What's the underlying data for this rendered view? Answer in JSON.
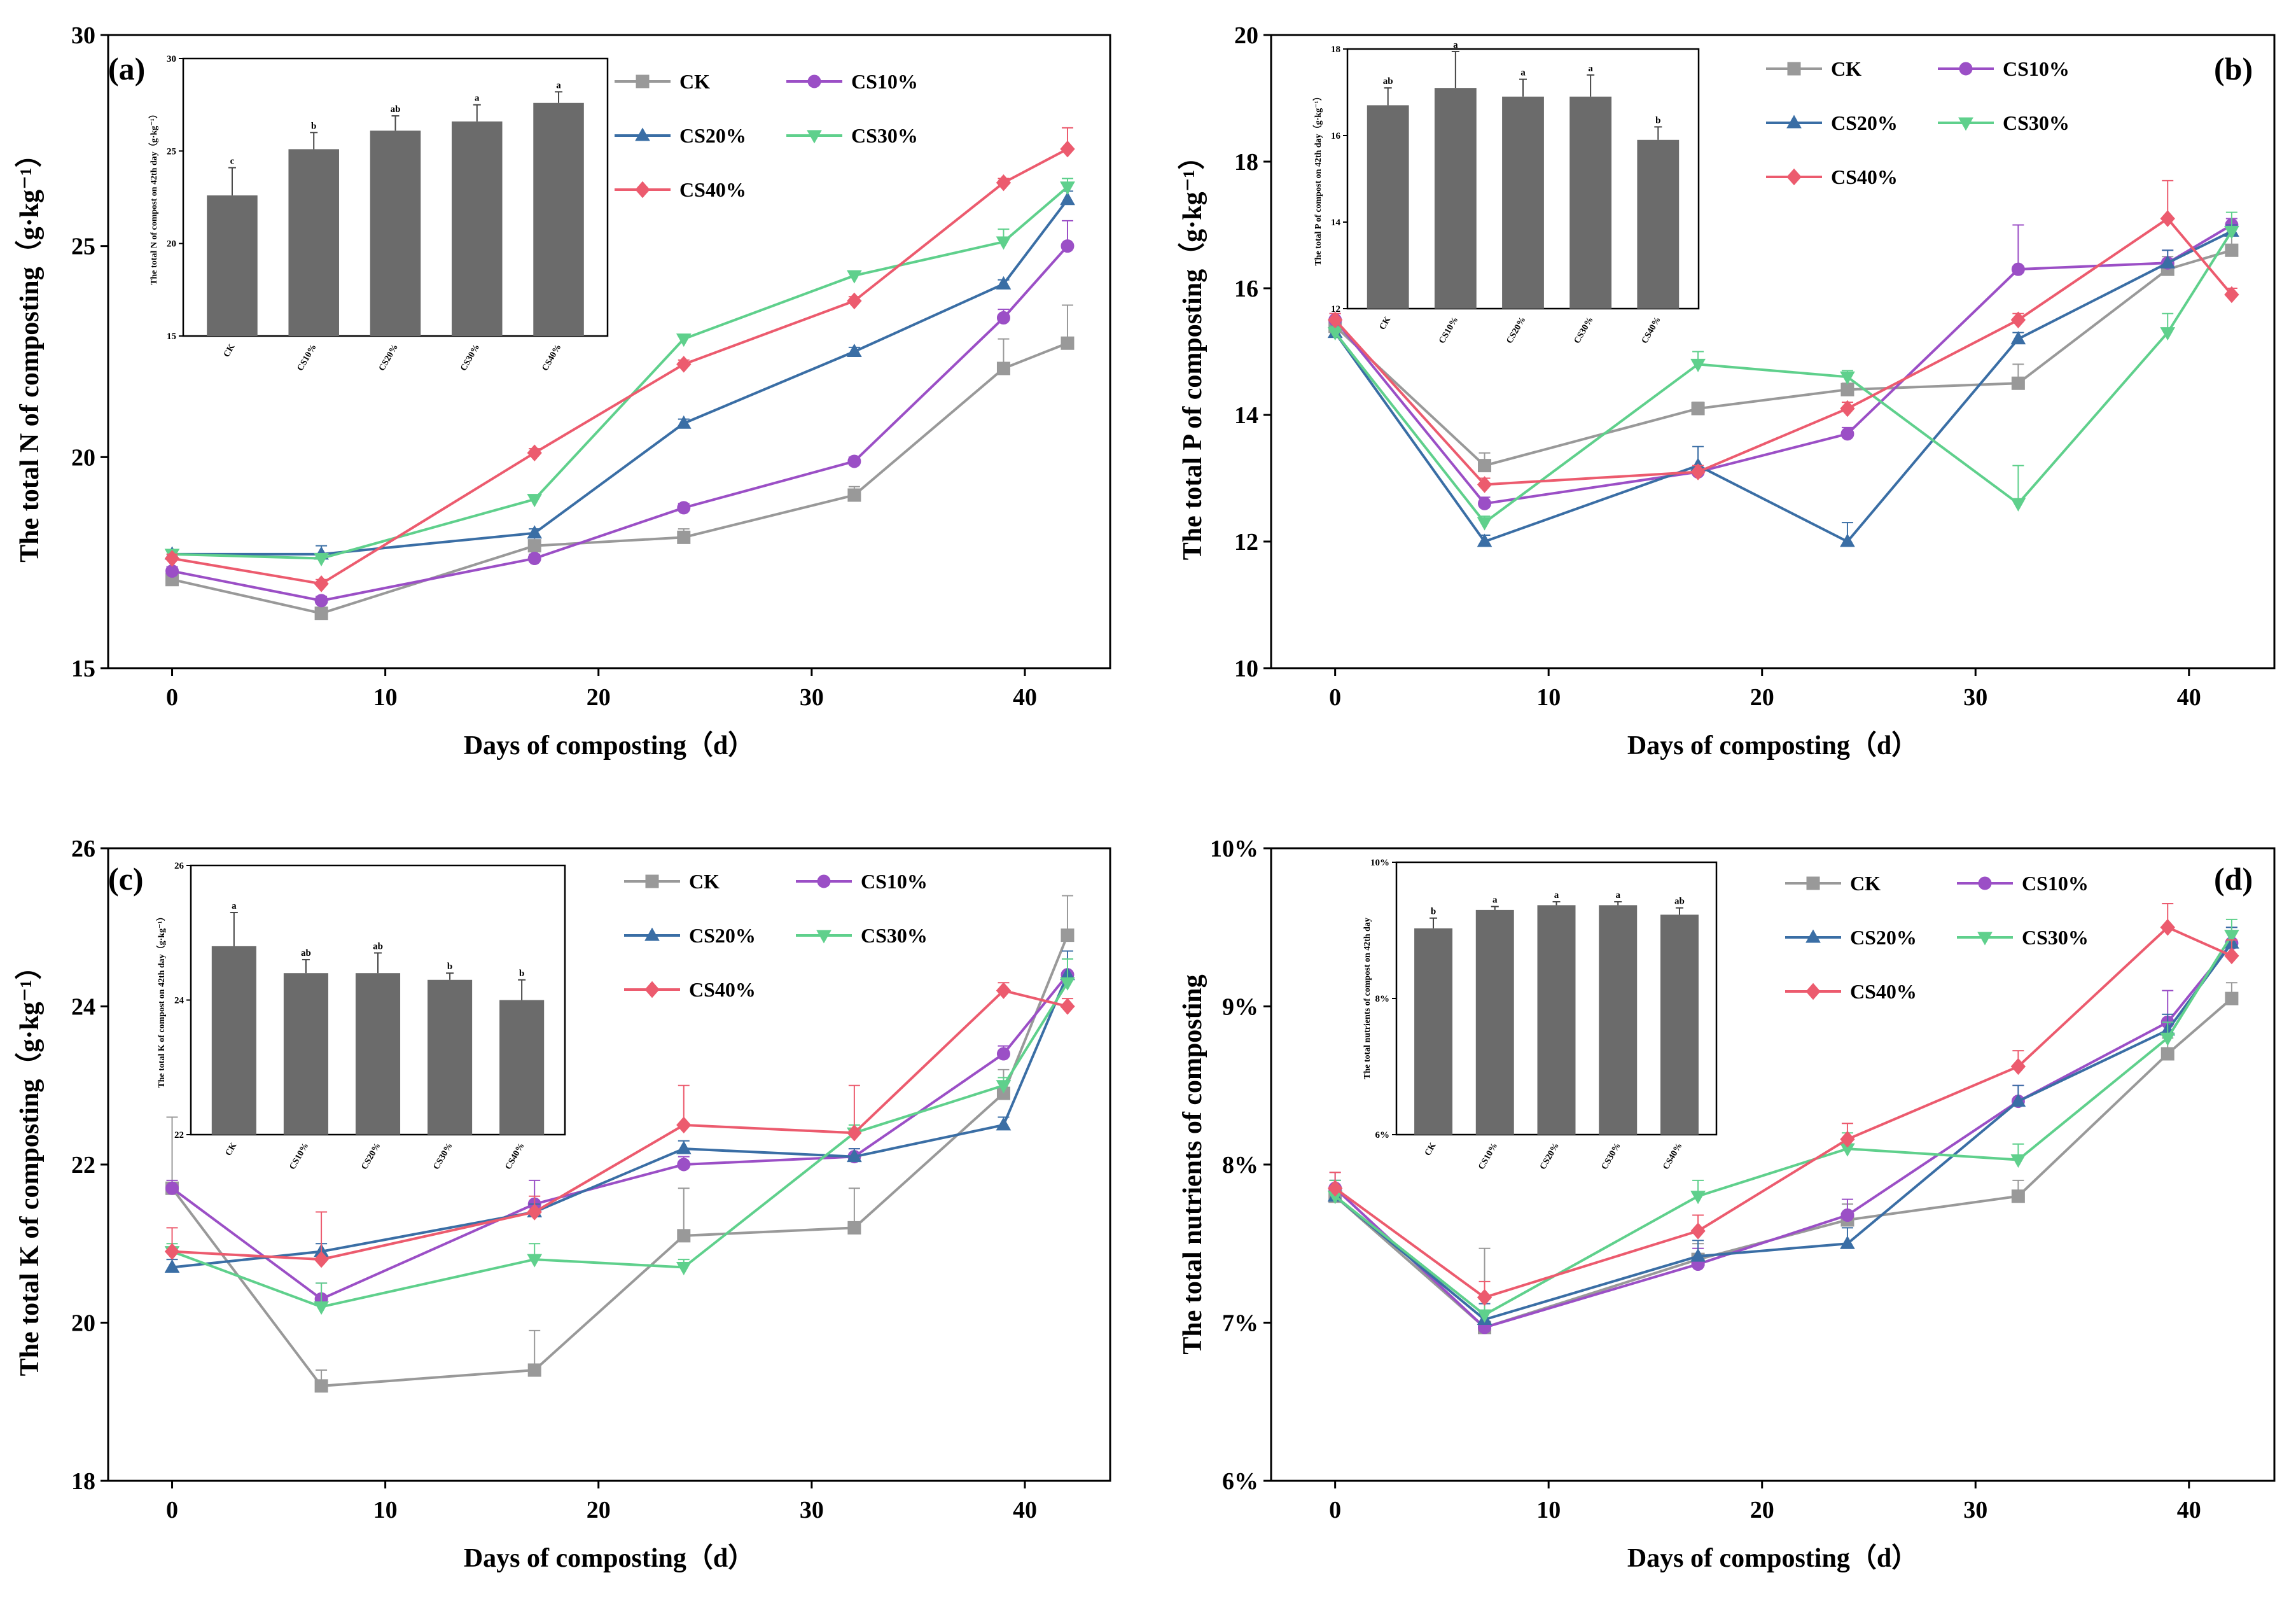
{
  "colors": {
    "CK": "#999999",
    "CS10%": "#9b4fc6",
    "CS20%": "#3a6ea5",
    "CS30%": "#5fd08c",
    "CS40%": "#ec5b6e",
    "inset_bar": "#6b6b6b"
  },
  "markers": {
    "CK": "square",
    "CS10%": "circle",
    "CS20%": "triangle-up",
    "CS30%": "triangle-down",
    "CS40%": "diamond"
  },
  "chart_data": [
    {
      "type": "line",
      "panel_label": "(a)",
      "xlabel": "Days of composting（d）",
      "ylabel": "The total N of composting（g·kg⁻¹）",
      "x": [
        0,
        7,
        17,
        24,
        32,
        39,
        42
      ],
      "xlim": [
        -3,
        44
      ],
      "xticks": [
        0,
        10,
        20,
        30,
        40
      ],
      "ylim": [
        15,
        30
      ],
      "yticks": [
        15,
        20,
        25,
        30
      ],
      "ytick_labels": [
        "15",
        "20",
        "25",
        "30"
      ],
      "legend_position": "top-right",
      "series": [
        {
          "name": "CK",
          "values": [
            17.1,
            16.3,
            17.9,
            18.1,
            19.1,
            22.1,
            22.7
          ],
          "errors": [
            0.2,
            0.1,
            0.2,
            0.2,
            0.2,
            0.7,
            0.9
          ]
        },
        {
          "name": "CS10%",
          "values": [
            17.3,
            16.6,
            17.6,
            18.8,
            19.9,
            23.3,
            25.0
          ],
          "errors": [
            0.1,
            0.1,
            0.1,
            0.1,
            0.1,
            0.2,
            0.6
          ]
        },
        {
          "name": "CS20%",
          "values": [
            17.7,
            17.7,
            18.2,
            20.8,
            22.5,
            24.1,
            26.1
          ],
          "errors": [
            0.1,
            0.2,
            0.1,
            0.1,
            0.1,
            0.1,
            0.2
          ]
        },
        {
          "name": "CS30%",
          "values": [
            17.7,
            17.6,
            19.0,
            22.8,
            24.3,
            25.1,
            26.4
          ],
          "errors": [
            0.1,
            0.1,
            0.1,
            0.1,
            0.1,
            0.3,
            0.2
          ]
        },
        {
          "name": "CS40%",
          "values": [
            17.6,
            17.0,
            20.1,
            22.2,
            23.7,
            26.5,
            27.3
          ],
          "errors": [
            0.1,
            0.1,
            0.1,
            0.1,
            0.1,
            0.1,
            0.5
          ]
        }
      ],
      "inset": {
        "type": "bar",
        "ylabel": "The total N of compost on 42th day（g·kg⁻¹）",
        "categories": [
          "CK",
          "CS10%",
          "CS20%",
          "CS30%",
          "CS40%"
        ],
        "values": [
          22.6,
          25.1,
          26.1,
          26.6,
          27.6
        ],
        "errors": [
          1.5,
          0.9,
          0.8,
          0.9,
          0.6
        ],
        "letters": [
          "c",
          "b",
          "ab",
          "a",
          "a"
        ],
        "ylim": [
          15,
          30
        ],
        "yticks": [
          15,
          20,
          25,
          30
        ],
        "ytick_labels": [
          "15",
          "20",
          "25",
          "30"
        ]
      }
    },
    {
      "type": "line",
      "panel_label": "(b)",
      "xlabel": "Days of composting（d）",
      "ylabel": "The total P of composting（g·kg⁻¹）",
      "x": [
        0,
        7,
        17,
        24,
        32,
        39,
        42
      ],
      "xlim": [
        -3,
        44
      ],
      "xticks": [
        0,
        10,
        20,
        30,
        40
      ],
      "ylim": [
        10,
        20
      ],
      "yticks": [
        10,
        12,
        14,
        16,
        18,
        20
      ],
      "ytick_labels": [
        "10",
        "12",
        "14",
        "16",
        "18",
        "20"
      ],
      "legend_position": "top-right",
      "series": [
        {
          "name": "CK",
          "values": [
            15.4,
            13.2,
            14.1,
            14.4,
            14.5,
            16.3,
            16.6
          ],
          "errors": [
            0.1,
            0.2,
            0.1,
            0.1,
            0.3,
            0.2,
            0.5
          ]
        },
        {
          "name": "CS10%",
          "values": [
            15.5,
            12.6,
            13.1,
            13.7,
            16.3,
            16.4,
            17.0
          ],
          "errors": [
            0.1,
            0.1,
            0.1,
            0.1,
            0.7,
            0.2,
            0.1
          ]
        },
        {
          "name": "CS20%",
          "values": [
            15.3,
            12.0,
            13.2,
            12.0,
            15.2,
            16.4,
            16.9
          ],
          "errors": [
            0.1,
            0.1,
            0.3,
            0.3,
            0.1,
            0.2,
            0.1
          ]
        },
        {
          "name": "CS30%",
          "values": [
            15.3,
            12.3,
            14.8,
            14.6,
            12.6,
            15.3,
            16.9
          ],
          "errors": [
            0.1,
            0.1,
            0.2,
            0.1,
            0.6,
            0.3,
            0.3
          ]
        },
        {
          "name": "CS40%",
          "values": [
            15.5,
            12.9,
            13.1,
            14.1,
            15.5,
            17.1,
            15.9
          ],
          "errors": [
            0.1,
            0.1,
            0.1,
            0.1,
            0.1,
            0.6,
            0.1
          ]
        }
      ],
      "inset": {
        "type": "bar",
        "ylabel": "The total P of compost on 42th day（g·kg⁻¹）",
        "categories": [
          "CK",
          "CS10%",
          "CS20%",
          "CS30%",
          "CS40%"
        ],
        "values": [
          16.7,
          17.1,
          16.9,
          16.9,
          15.9
        ],
        "errors": [
          0.4,
          4.9,
          0.4,
          0.5,
          0.3
        ],
        "letters": [
          "ab",
          "a",
          "a",
          "a",
          "b"
        ],
        "ylim": [
          12,
          18
        ],
        "yticks": [
          12,
          14,
          16,
          18
        ],
        "ytick_labels": [
          "12",
          "14",
          "16",
          "18"
        ]
      }
    },
    {
      "type": "line",
      "panel_label": "(c)",
      "xlabel": "Days of composting（d）",
      "ylabel": "The total K of composting（g·kg⁻¹）",
      "x": [
        0,
        7,
        17,
        24,
        32,
        39,
        42
      ],
      "xlim": [
        -3,
        44
      ],
      "xticks": [
        0,
        10,
        20,
        30,
        40
      ],
      "ylim": [
        18,
        26
      ],
      "yticks": [
        18,
        20,
        22,
        24,
        26
      ],
      "ytick_labels": [
        "18",
        "20",
        "22",
        "24",
        "26"
      ],
      "legend_position": "top-right",
      "series": [
        {
          "name": "CK",
          "values": [
            21.7,
            19.2,
            19.4,
            21.1,
            21.2,
            22.9,
            24.9
          ],
          "errors": [
            0.9,
            0.2,
            0.5,
            0.6,
            0.5,
            0.3,
            0.5
          ]
        },
        {
          "name": "CS10%",
          "values": [
            21.7,
            20.3,
            21.5,
            22.0,
            22.1,
            23.4,
            24.4
          ],
          "errors": [
            0.1,
            0.2,
            0.3,
            0.1,
            0.1,
            0.1,
            0.2
          ]
        },
        {
          "name": "CS20%",
          "values": [
            20.7,
            20.9,
            21.4,
            22.2,
            22.1,
            22.5,
            24.4
          ],
          "errors": [
            0.1,
            0.1,
            0.1,
            0.1,
            0.1,
            0.1,
            0.3
          ]
        },
        {
          "name": "CS30%",
          "values": [
            20.9,
            20.2,
            20.8,
            20.7,
            22.4,
            23.0,
            24.3
          ],
          "errors": [
            0.1,
            0.3,
            0.2,
            0.1,
            0.1,
            0.1,
            0.3
          ]
        },
        {
          "name": "CS40%",
          "values": [
            20.9,
            20.8,
            21.4,
            22.5,
            22.4,
            24.2,
            24.0
          ],
          "errors": [
            0.3,
            0.6,
            0.2,
            0.5,
            0.6,
            0.1,
            0.1
          ]
        }
      ],
      "inset": {
        "type": "bar",
        "ylabel": "The total K of compost on 42th day（g·kg⁻¹）",
        "categories": [
          "CK",
          "CS10%",
          "CS20%",
          "CS30%",
          "CS40%"
        ],
        "values": [
          24.8,
          24.4,
          24.4,
          24.3,
          24.0
        ],
        "errors": [
          0.5,
          0.2,
          0.3,
          0.1,
          0.3
        ],
        "letters": [
          "a",
          "ab",
          "ab",
          "b",
          "b"
        ],
        "ylim": [
          22,
          26
        ],
        "yticks": [
          22,
          24,
          26
        ],
        "ytick_labels": [
          "22",
          "24",
          "26"
        ]
      }
    },
    {
      "type": "line",
      "panel_label": "(d)",
      "xlabel": "Days of composting（d）",
      "ylabel": "The total nutrients of composting",
      "x": [
        0,
        7,
        17,
        24,
        32,
        39,
        42
      ],
      "xlim": [
        -3,
        44
      ],
      "xticks": [
        0,
        10,
        20,
        30,
        40
      ],
      "ylim": [
        6,
        10
      ],
      "yticks": [
        6,
        7,
        8,
        9,
        10
      ],
      "ytick_labels": [
        "6%",
        "7%",
        "8%",
        "9%",
        "10%"
      ],
      "legend_position": "top-right",
      "series": [
        {
          "name": "CK",
          "values": [
            7.8,
            6.97,
            7.4,
            7.65,
            7.8,
            8.7,
            9.05
          ],
          "errors": [
            0.1,
            0.5,
            0.1,
            0.1,
            0.1,
            0.1,
            0.1
          ]
        },
        {
          "name": "CS10%",
          "values": [
            7.85,
            6.97,
            7.37,
            7.68,
            8.4,
            8.9,
            9.4
          ],
          "errors": [
            0.1,
            0.1,
            0.1,
            0.1,
            0.1,
            0.2,
            0.1
          ]
        },
        {
          "name": "CS20%",
          "values": [
            7.8,
            7.02,
            7.42,
            7.5,
            8.4,
            8.85,
            9.4
          ],
          "errors": [
            0.1,
            0.1,
            0.1,
            0.1,
            0.1,
            0.1,
            0.1
          ]
        },
        {
          "name": "CS30%",
          "values": [
            7.8,
            7.05,
            7.8,
            8.1,
            8.03,
            8.8,
            9.45
          ],
          "errors": [
            0.1,
            0.1,
            0.1,
            0.1,
            0.1,
            0.1,
            0.1
          ]
        },
        {
          "name": "CS40%",
          "values": [
            7.85,
            7.16,
            7.58,
            8.16,
            8.62,
            9.5,
            9.32
          ],
          "errors": [
            0.1,
            0.1,
            0.1,
            0.1,
            0.1,
            0.15,
            0.1
          ]
        }
      ],
      "inset": {
        "type": "bar",
        "ylabel": "The total nutrients of compost on 42th day",
        "categories": [
          "CK",
          "CS10%",
          "CS20%",
          "CS30%",
          "CS40%"
        ],
        "values": [
          9.03,
          9.3,
          9.37,
          9.37,
          9.23
        ],
        "errors": [
          0.15,
          0.05,
          0.05,
          0.05,
          0.1
        ],
        "letters": [
          "b",
          "a",
          "a",
          "a",
          "ab"
        ],
        "ylim": [
          6,
          10
        ],
        "yticks": [
          6,
          8,
          10
        ],
        "ytick_labels": [
          "6%",
          "8%",
          "10%"
        ]
      }
    }
  ]
}
